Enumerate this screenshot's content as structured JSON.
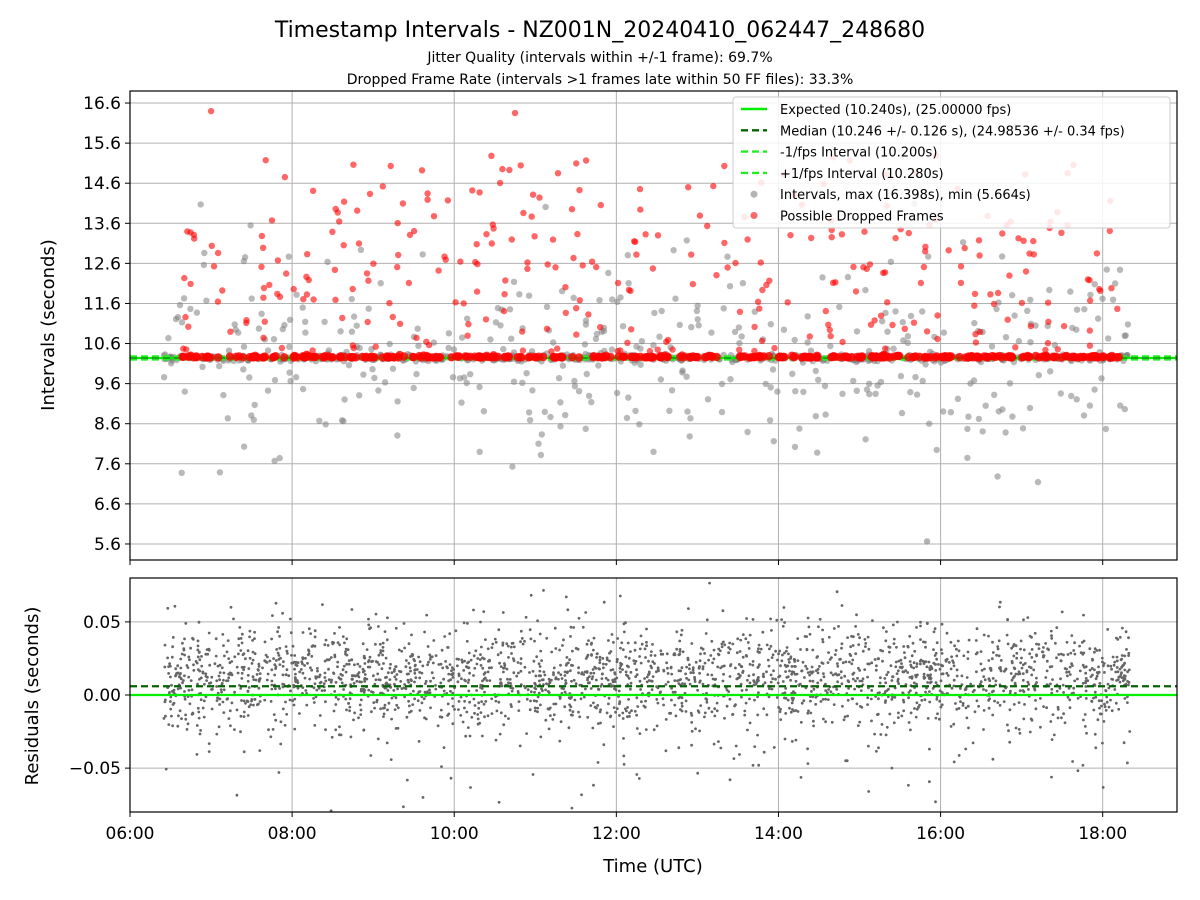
{
  "title": "Timestamp Intervals - NZ001N_20240410_062447_248680",
  "subtitles": [
    "Jitter Quality (intervals within +/-1 frame): 69.7%",
    "Dropped Frame Rate (intervals >1 frames late within 50 FF files): 33.3%"
  ],
  "colors": {
    "expected": "#00ee00",
    "median": "#006400",
    "interval_band": "#22ee22",
    "intervals": "#808080",
    "dropped": "#ff0000",
    "residuals": "#666666"
  },
  "chart_data": [
    {
      "type": "scatter",
      "panel": "top",
      "ylabel": "Intervals (seconds)",
      "xlabel": "",
      "xlim": [
        "06:00",
        "18:55"
      ],
      "ylim": [
        5.2,
        16.9
      ],
      "yticks": [
        "5.6",
        "6.6",
        "7.6",
        "8.6",
        "9.6",
        "10.6",
        "11.6",
        "12.6",
        "13.6",
        "14.6",
        "15.6",
        "16.6"
      ],
      "xticks": [
        "06:00",
        "08:00",
        "10:00",
        "12:00",
        "14:00",
        "16:00",
        "18:00"
      ],
      "grid": true,
      "legend_position": "top-right",
      "data_time_range": [
        "06:25",
        "18:20"
      ],
      "lines": [
        {
          "name": "Expected (10.240s), (25.00000 fps)",
          "y": 10.24,
          "style": "solid",
          "color_key": "expected"
        },
        {
          "name": "Median (10.246 +/- 0.126 s), (24.98536 +/- 0.34 fps)",
          "y": 10.246,
          "style": "dashed",
          "color_key": "median"
        },
        {
          "name": "-1/fps Interval (10.200s)",
          "y": 10.2,
          "style": "dashed",
          "color_key": "interval_band"
        },
        {
          "name": "+1/fps Interval (10.280s)",
          "y": 10.28,
          "style": "dashed",
          "color_key": "interval_band"
        }
      ],
      "series": [
        {
          "name": "Intervals, max (16.398s), min (5.664s)",
          "max": 16.398,
          "min": 5.664,
          "color_key": "intervals",
          "density": "dense cluster near 10.24 s, sparse scatter 6–14 s"
        },
        {
          "name": "Possible Dropped Frames",
          "color_key": "dropped",
          "density": "dense row near 10.28 s, sparse scatter 10.4–16.4 s"
        }
      ]
    },
    {
      "type": "scatter",
      "panel": "bottom",
      "ylabel": "Residuals (seconds)",
      "xlabel": "Time (UTC)",
      "xlim": [
        "06:00",
        "18:55"
      ],
      "ylim": [
        -0.08,
        0.08
      ],
      "yticks": [
        "−0.05",
        "0.00",
        "0.05"
      ],
      "xticks": [
        "06:00",
        "08:00",
        "10:00",
        "12:00",
        "14:00",
        "16:00",
        "18:00"
      ],
      "grid": true,
      "lines": [
        {
          "y": 0.0,
          "style": "solid",
          "color_key": "expected"
        },
        {
          "y": 0.006,
          "style": "dashed",
          "color_key": "median"
        }
      ],
      "series": [
        {
          "color_key": "residuals",
          "density": "dense band roughly −0.03 to 0.05 s"
        }
      ]
    }
  ]
}
